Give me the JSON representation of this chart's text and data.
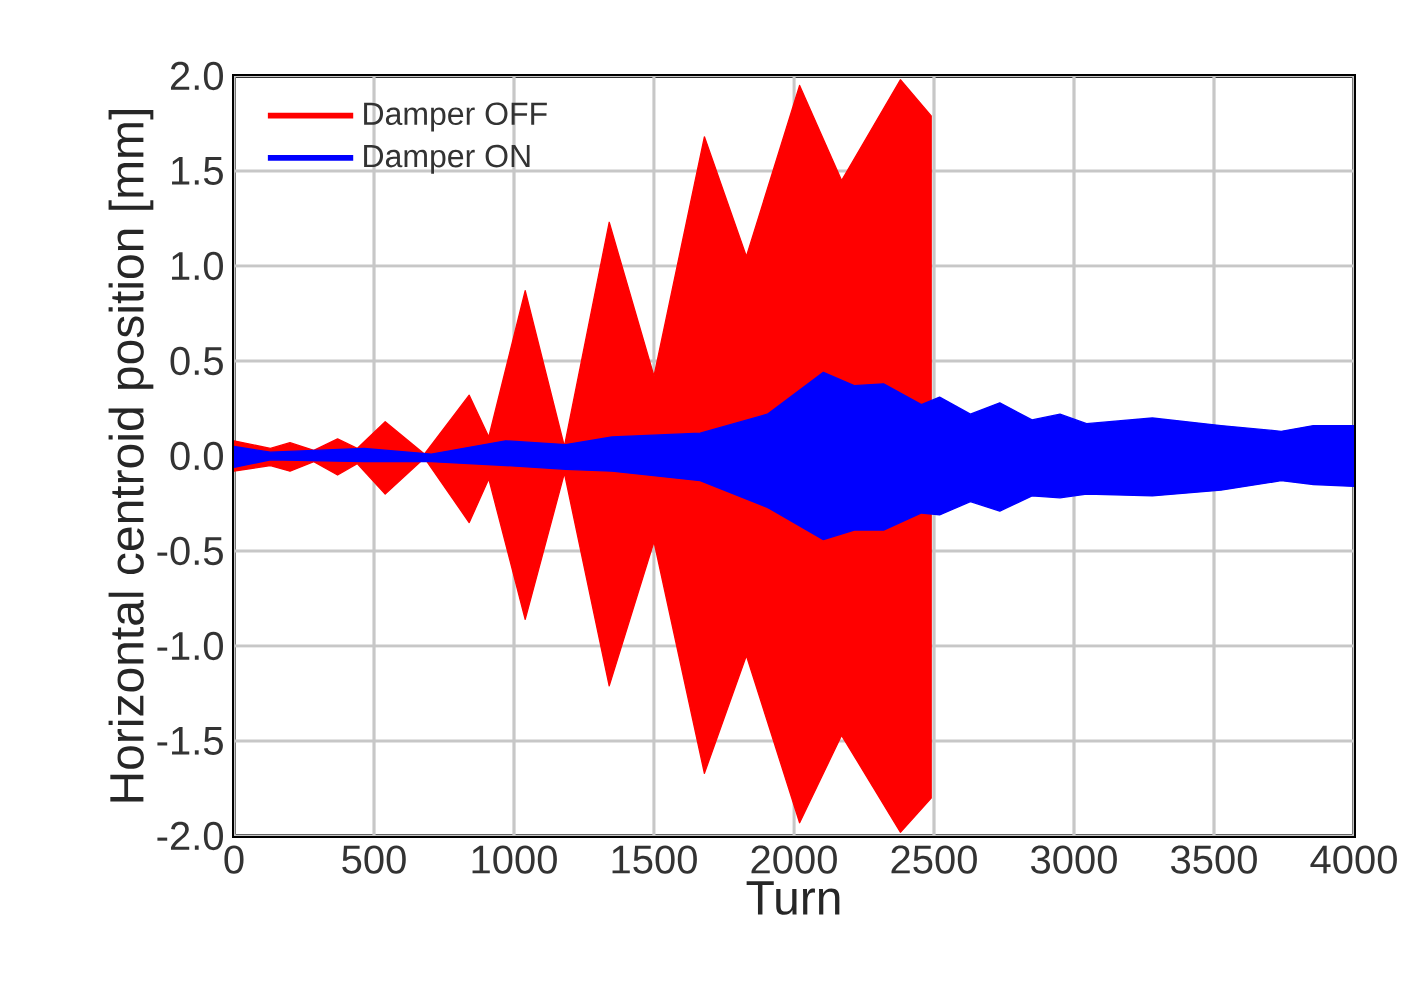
{
  "chart_data": {
    "type": "area",
    "xlabel": "Turn",
    "ylabel": "Horizontal centroid position [mm]",
    "xlim": [
      0,
      4000
    ],
    "xticks": [
      0,
      500,
      1000,
      1500,
      2000,
      2500,
      3000,
      3500,
      4000
    ],
    "ylim": [
      -2.0,
      2.0
    ],
    "yticks": [
      {
        "value": -2.0,
        "label": "-2.0"
      },
      {
        "value": -1.5,
        "label": "-1.5"
      },
      {
        "value": -1.0,
        "label": "-1.0"
      },
      {
        "value": -0.5,
        "label": "-0.5"
      },
      {
        "value": 0.0,
        "label": "0.0"
      },
      {
        "value": 0.5,
        "label": "0.5"
      },
      {
        "value": 1.0,
        "label": "1.0"
      },
      {
        "value": 1.5,
        "label": "1.5"
      },
      {
        "value": 2.0,
        "label": "2.0"
      }
    ],
    "grid": true,
    "legend": "top left",
    "series": [
      {
        "name": "Damper OFF",
        "color": "#ff0000",
        "x": [
          0,
          130,
          200,
          285,
          370,
          440,
          540,
          680,
          840,
          910,
          1040,
          1180,
          1340,
          1500,
          1680,
          1830,
          2020,
          2170,
          2380,
          2490
        ],
        "values": [
          0.08,
          0.04,
          0.07,
          0.03,
          0.09,
          0.04,
          0.18,
          0.01,
          0.32,
          0.1,
          0.87,
          0.05,
          1.23,
          0.42,
          1.68,
          1.05,
          1.95,
          1.45,
          1.98,
          1.79
        ]
      },
      {
        "color": "#ff0000",
        "x": [
          0,
          130,
          200,
          285,
          370,
          440,
          540,
          680,
          840,
          910,
          1040,
          1180,
          1340,
          1500,
          1680,
          1830,
          2020,
          2170,
          2380,
          2490
        ],
        "values": [
          -0.08,
          -0.05,
          -0.08,
          -0.03,
          -0.1,
          -0.04,
          -0.2,
          -0.01,
          -0.35,
          -0.12,
          -0.86,
          -0.09,
          -1.21,
          -0.45,
          -1.67,
          -1.05,
          -1.93,
          -1.47,
          -1.98,
          -1.8
        ]
      },
      {
        "name": "Damper ON",
        "color": "#0000ff",
        "x": [
          0,
          130,
          465,
          705,
          970,
          1185,
          1350,
          1665,
          1905,
          2105,
          2215,
          2320,
          2455,
          2520,
          2630,
          2735,
          2850,
          2950,
          3045,
          3280,
          3525,
          3740,
          3855,
          4000
        ],
        "values": [
          0.05,
          0.02,
          0.04,
          0.01,
          0.08,
          0.06,
          0.1,
          0.12,
          0.22,
          0.44,
          0.37,
          0.38,
          0.27,
          0.31,
          0.22,
          0.28,
          0.19,
          0.22,
          0.17,
          0.2,
          0.16,
          0.13,
          0.16,
          0.16
        ]
      },
      {
        "color": "#0000ff",
        "x": [
          0,
          130,
          465,
          705,
          970,
          1185,
          1350,
          1665,
          1905,
          2105,
          2215,
          2320,
          2455,
          2520,
          2630,
          2735,
          2850,
          2950,
          3045,
          3280,
          3525,
          3740,
          3855,
          4000
        ],
        "values": [
          -0.06,
          -0.02,
          -0.03,
          -0.03,
          -0.05,
          -0.07,
          -0.08,
          -0.13,
          -0.27,
          -0.44,
          -0.39,
          -0.39,
          -0.3,
          -0.31,
          -0.24,
          -0.29,
          -0.21,
          -0.22,
          -0.2,
          -0.21,
          -0.18,
          -0.13,
          -0.15,
          -0.16
        ]
      }
    ]
  }
}
